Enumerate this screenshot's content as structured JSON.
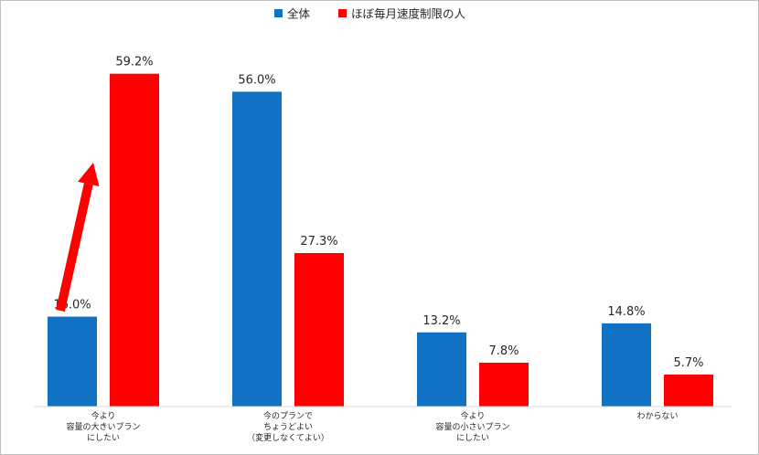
{
  "chart_data": {
    "type": "bar",
    "categories": [
      [
        "今より",
        "容量の大きいプラン",
        "にしたい"
      ],
      [
        "今のプランで",
        "ちょうどよい",
        "（変更しなくてよい）"
      ],
      [
        "今より",
        "容量の小さいプラン",
        "にしたい"
      ],
      [
        "わからない"
      ]
    ],
    "series": [
      {
        "name": "全体",
        "color": "#1172c4",
        "values": [
          16.0,
          56.0,
          13.2,
          14.8
        ],
        "labels": [
          "16.0%",
          "56.0%",
          "13.2%",
          "14.8%"
        ]
      },
      {
        "name": "ほぼ毎月速度制限の人",
        "color": "#ff0000",
        "values": [
          59.2,
          27.3,
          7.8,
          5.7
        ],
        "labels": [
          "59.2%",
          "27.3%",
          "7.8%",
          "5.7%"
        ]
      }
    ],
    "ylim": [
      0,
      65
    ],
    "legend_position": "top-center",
    "grid": false,
    "annotation": {
      "type": "arrow",
      "color": "#ff0000",
      "description": "red arrow pointing upward between the first pair of bars"
    }
  }
}
